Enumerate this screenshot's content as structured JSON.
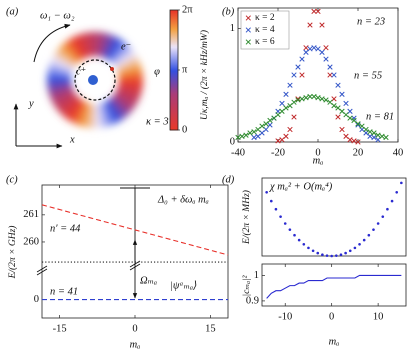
{
  "chart_data": [
    {
      "type": "ring",
      "panel": "(a)",
      "xlabel": "x",
      "ylabel": "y",
      "annotations": [
        "ω₁ − ω₂",
        "c⁺",
        "e⁻",
        "κ = 3"
      ],
      "colorbar": {
        "label": "φ",
        "clim": [
          0,
          6.2832
        ],
        "ticks": [
          0,
          {
            "value": 3.1416,
            "label": "π"
          },
          {
            "value": 6.2832,
            "label": "2π"
          }
        ]
      }
    },
    {
      "type": "scatter",
      "panel": "(b)",
      "xlabel": "mₐ",
      "ylabel": "Uκ,mₐ / (2π × kHz/mW)",
      "xlim": [
        -40,
        40
      ],
      "xticks": [
        -40,
        -20,
        0,
        20,
        40
      ],
      "ylim": [
        0,
        1.18
      ],
      "yticks": [
        0,
        1
      ],
      "legend": "upper left",
      "marker": "x",
      "series": [
        {
          "name": "κ = 2",
          "color": "#c0282a",
          "x": [
            -20,
            -18,
            -16,
            -14,
            -12,
            -10,
            -8,
            -6,
            -4,
            -2,
            0,
            2,
            4,
            6,
            8,
            10,
            12,
            14,
            16,
            18,
            20
          ],
          "values": [
            0.01,
            0.02,
            0.05,
            0.11,
            0.22,
            0.38,
            0.59,
            0.83,
            1.03,
            1.15,
            1.15,
            1.03,
            0.83,
            0.59,
            0.38,
            0.22,
            0.11,
            0.05,
            0.02,
            0.01,
            0
          ]
        },
        {
          "name": "κ = 4",
          "color": "#3355c8",
          "x": [
            -32,
            -30,
            -28,
            -26,
            -24,
            -22,
            -20,
            -18,
            -16,
            -14,
            -12,
            -10,
            -8,
            -6,
            -4,
            -2,
            0,
            2,
            4,
            6,
            8,
            10,
            12,
            14,
            16,
            18,
            20,
            22,
            24,
            26,
            28,
            30
          ],
          "values": [
            0.04,
            0.05,
            0.08,
            0.11,
            0.15,
            0.21,
            0.27,
            0.34,
            0.42,
            0.5,
            0.59,
            0.66,
            0.73,
            0.79,
            0.82,
            0.83,
            0.82,
            0.79,
            0.73,
            0.66,
            0.59,
            0.5,
            0.42,
            0.34,
            0.27,
            0.21,
            0.15,
            0.11,
            0.08,
            0.05,
            0.04,
            0.02
          ]
        },
        {
          "name": "κ = 6",
          "color": "#2e8b2e",
          "x": [
            -40,
            -38,
            -36,
            -34,
            -32,
            -30,
            -28,
            -26,
            -24,
            -22,
            -20,
            -18,
            -16,
            -14,
            -12,
            -10,
            -8,
            -6,
            -4,
            -2,
            0,
            2,
            4,
            6,
            8,
            10,
            12,
            14,
            16,
            18,
            20,
            22,
            24,
            26,
            28,
            30,
            32,
            34
          ],
          "values": [
            0.04,
            0.05,
            0.06,
            0.08,
            0.09,
            0.11,
            0.14,
            0.16,
            0.19,
            0.21,
            0.24,
            0.27,
            0.3,
            0.32,
            0.35,
            0.37,
            0.38,
            0.39,
            0.4,
            0.4,
            0.39,
            0.38,
            0.37,
            0.35,
            0.32,
            0.3,
            0.27,
            0.24,
            0.21,
            0.19,
            0.16,
            0.14,
            0.11,
            0.09,
            0.08,
            0.06,
            0.05,
            0.04
          ]
        }
      ],
      "annotations": [
        "n = 23",
        "n = 55",
        "n = 81"
      ]
    },
    {
      "type": "line",
      "panel": "(c)",
      "xlabel": "mₐ",
      "ylabel": "E/(2π × GHz)",
      "xlim": [
        -18.5,
        18.5
      ],
      "xticks": [
        -15,
        0,
        15
      ],
      "y_segments": [
        {
          "ylim": [
            -0.5,
            0.75
          ],
          "yticks": [
            0
          ]
        },
        {
          "ylim": [
            259.04,
            262.1
          ],
          "yticks": [
            260,
            261
          ]
        }
      ],
      "series": [
        {
          "color": "#e8302a",
          "dash": "dashed",
          "axis": "upper",
          "x": [
            -18.5,
            18.5
          ],
          "values": [
            261.37,
            259.52
          ]
        },
        {
          "color": "#222222",
          "dash": "dotted",
          "axis": "upper",
          "x": [
            -18.5,
            18.5
          ],
          "values": [
            259.26,
            259.26
          ]
        },
        {
          "color": "#2f3fd0",
          "dash": "dashed",
          "axis": "lower",
          "x": [
            -18.5,
            18.5
          ],
          "values": [
            0,
            0
          ]
        }
      ],
      "annotations": [
        "Δ₀ + δωₐ mₐ",
        "n′ = 44",
        "Ωₘₐ",
        "n = 41",
        "|ψᵃₘₐ⟩"
      ]
    },
    {
      "type": "scatter",
      "panel": "(d)",
      "ylabel": "E/(2π × MHz)",
      "marker": "dot",
      "color": "#2a2ad0",
      "xlim": [
        -15,
        16
      ],
      "ylim": [
        0,
        240
      ],
      "x": [
        -14,
        -13,
        -12,
        -11,
        -10,
        -9,
        -8,
        -7,
        -6,
        -5,
        -4,
        -3,
        -2,
        -1,
        0,
        1,
        2,
        3,
        4,
        5,
        6,
        7,
        8,
        9,
        10,
        11,
        12,
        13,
        14,
        15
      ],
      "values": [
        196,
        169,
        144,
        121,
        100,
        81,
        64,
        49,
        36,
        25,
        16,
        9,
        4,
        1,
        0,
        1,
        4,
        9,
        16,
        25,
        36,
        49,
        64,
        81,
        100,
        121,
        144,
        169,
        196,
        225
      ],
      "annotations": [
        "χ mₐ² + O(mₐ⁴)"
      ]
    },
    {
      "type": "line",
      "xlabel": "mₐ",
      "ylabel": "|cₘₐ|²",
      "color": "#2a2ad0",
      "xlim": [
        -15,
        16
      ],
      "xticks": [
        -10,
        0,
        10
      ],
      "ylim": [
        0.88,
        1.045
      ],
      "yticks": [
        0.9,
        1
      ],
      "x": [
        -14,
        -13,
        -12,
        -11,
        -10,
        -9,
        -8,
        -7,
        -6,
        -5,
        -4,
        -3,
        -2,
        -1,
        0,
        1,
        2,
        3,
        4,
        5,
        6,
        7,
        8,
        9,
        10,
        11,
        12,
        13,
        14,
        15
      ],
      "values": [
        0.91,
        0.93,
        0.94,
        0.94,
        0.95,
        0.96,
        0.96,
        0.97,
        0.97,
        0.98,
        0.98,
        0.98,
        0.98,
        0.99,
        0.99,
        0.99,
        0.99,
        0.99,
        0.99,
        0.99,
        1,
        1,
        1,
        1,
        1,
        1,
        1,
        1,
        1,
        1
      ]
    }
  ]
}
